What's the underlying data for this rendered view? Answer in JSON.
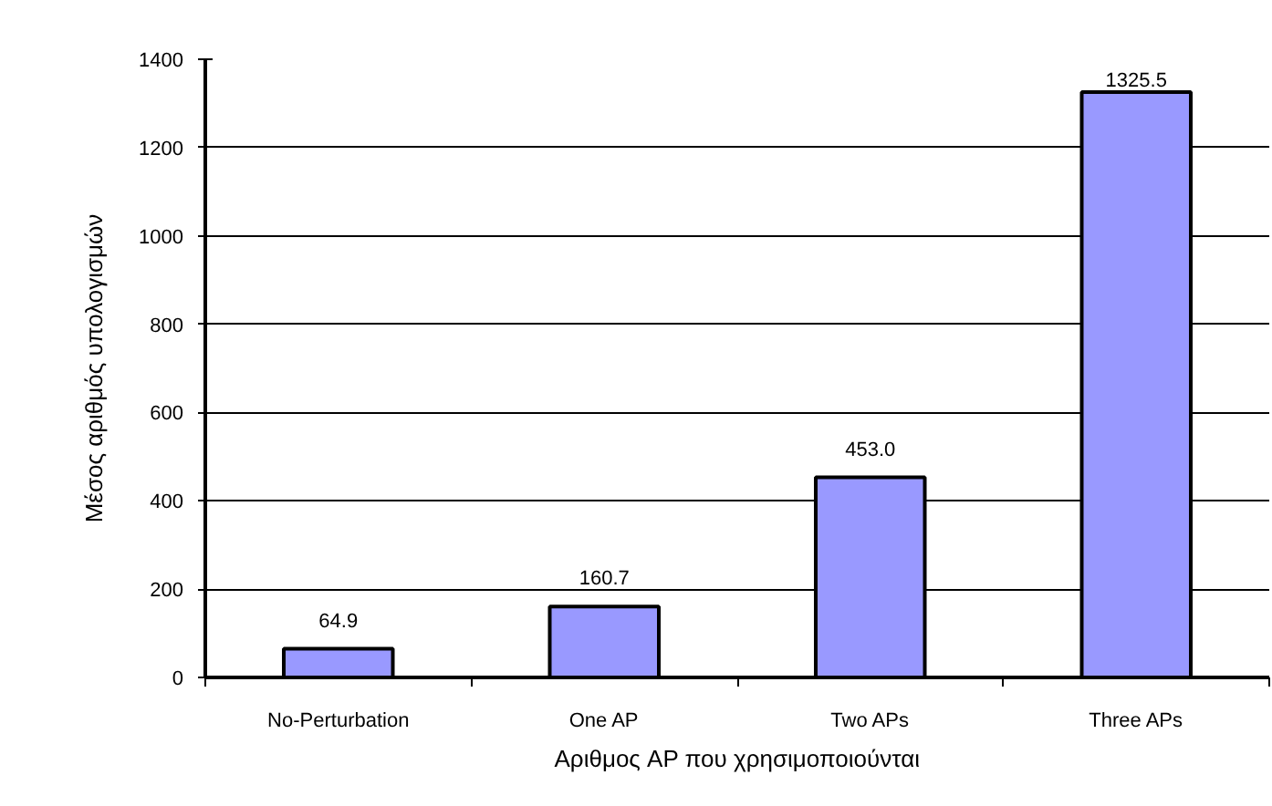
{
  "chart_data": {
    "type": "bar",
    "categories": [
      "No-Perturbation",
      "One AP",
      "Two APs",
      "Three APs"
    ],
    "values": [
      64.9,
      160.7,
      453.0,
      1325.5
    ],
    "value_labels": [
      "64.9",
      "160.7",
      "453.0",
      "1325.5"
    ],
    "color": "#9999ff",
    "xlabel": "Αριθμος AP που χρησιμοποιούνται",
    "ylabel": "Μέσος αριθμός υπολογισμών",
    "ylim": [
      0,
      1400
    ],
    "yticks": [
      0,
      200,
      400,
      600,
      800,
      1000,
      1200,
      1400
    ],
    "grid": "y"
  }
}
